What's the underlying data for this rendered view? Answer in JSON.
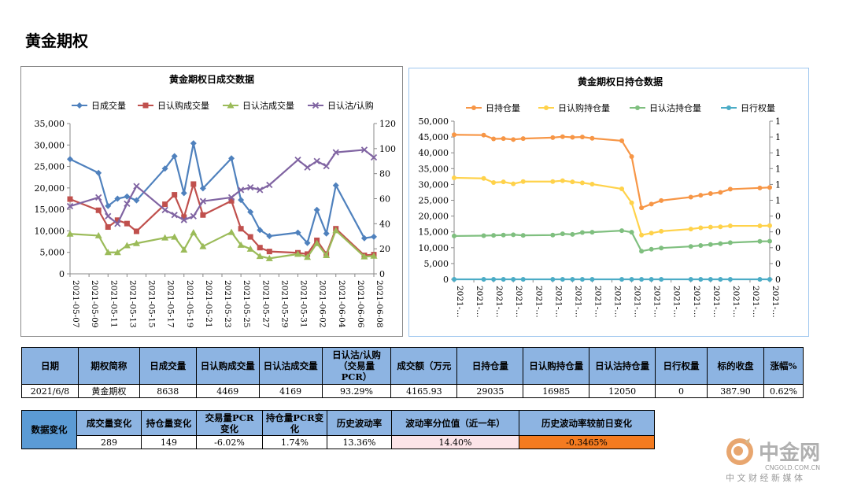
{
  "page": {
    "title": "黄金期权"
  },
  "chart_data": [
    {
      "type": "line",
      "title": "黄金期权日成交数据",
      "categories": [
        "2021-05-07",
        "2021-05-10",
        "2021-05-11",
        "2021-05-12",
        "2021-05-13",
        "2021-05-14",
        "2021-05-17",
        "2021-05-18",
        "2021-05-19",
        "2021-05-20",
        "2021-05-21",
        "2021-05-24",
        "2021-05-25",
        "2021-05-26",
        "2021-05-27",
        "2021-05-28",
        "2021-05-31",
        "2021-06-01",
        "2021-06-02",
        "2021-06-03",
        "2021-06-04",
        "2021-06-07",
        "2021-06-08"
      ],
      "x_tick_labels": [
        "2021-05-07",
        "2021-05-09",
        "2021-05-11",
        "2021-05-13",
        "2021-05-15",
        "2021-05-17",
        "2021-05-19",
        "2021-05-21",
        "2021-05-23",
        "2021-05-25",
        "2021-05-27",
        "2021-05-29",
        "2021-05-31",
        "2021-06-02",
        "2021-06-04",
        "2021-06-06",
        "2021-06-08"
      ],
      "x_range_days": [
        0,
        32
      ],
      "x_days": [
        0,
        3,
        4,
        5,
        6,
        7,
        10,
        11,
        12,
        13,
        14,
        17,
        18,
        19,
        20,
        21,
        24,
        25,
        26,
        27,
        28,
        31,
        32
      ],
      "left_axis": {
        "min": 0,
        "max": 35000,
        "step": 5000,
        "tick_labels": [
          "0",
          "5,000",
          "10,000",
          "15,000",
          "20,000",
          "25,000",
          "30,000",
          "35,000"
        ]
      },
      "right_axis": {
        "min": 0,
        "max": 120,
        "step": 20,
        "tick_labels": [
          "0",
          "20",
          "40",
          "60",
          "80",
          "100",
          "120"
        ]
      },
      "legend_position": "top",
      "series": [
        {
          "name": "日成交量",
          "axis": "left",
          "color": "#4f81bd",
          "marker": "diamond",
          "values": [
            26700,
            23500,
            15800,
            17500,
            18000,
            17100,
            24500,
            27400,
            18800,
            30400,
            19900,
            26900,
            17200,
            14400,
            10200,
            8800,
            9600,
            7200,
            14900,
            9400,
            20600,
            8300,
            8638
          ]
        },
        {
          "name": "日认购成交量",
          "axis": "left",
          "color": "#c0504d",
          "marker": "square",
          "values": [
            17400,
            14800,
            10900,
            12500,
            11700,
            9900,
            16200,
            18400,
            13200,
            20900,
            13700,
            17000,
            10500,
            8600,
            6100,
            5200,
            4900,
            4600,
            7800,
            4600,
            10500,
            4300,
            4469
          ]
        },
        {
          "name": "日认沽成交量",
          "axis": "left",
          "color": "#9bbb59",
          "marker": "triangle",
          "values": [
            9300,
            8900,
            5000,
            5000,
            6600,
            7100,
            8400,
            8600,
            5600,
            9600,
            6400,
            9700,
            6700,
            5800,
            4100,
            3600,
            4600,
            3900,
            7100,
            4300,
            10100,
            4000,
            4169
          ]
        },
        {
          "name": "日认沽/认购",
          "axis": "right",
          "color": "#8064a2",
          "marker": "x",
          "values": [
            54,
            61,
            46,
            40,
            56,
            70,
            51,
            47,
            43,
            46,
            58,
            61,
            67,
            69,
            67,
            71,
            91,
            85,
            90,
            86,
            97,
            99,
            93
          ]
        }
      ]
    },
    {
      "type": "line",
      "title": "黄金期权日持仓数据",
      "x_tick_labels": [
        "2021-…",
        "2021-…",
        "2021-…",
        "2021-…",
        "2021-…",
        "2021-…",
        "2021-…",
        "2021-…",
        "2021-…",
        "2021-…",
        "2021-…",
        "2021-…",
        "2021-…",
        "2021-…",
        "2021-…",
        "2021-…",
        "2021-…"
      ],
      "x_range_days": [
        0,
        32
      ],
      "x_days": [
        0,
        3,
        4,
        5,
        6,
        7,
        10,
        11,
        12,
        13,
        14,
        17,
        18,
        19,
        20,
        21,
        24,
        25,
        26,
        27,
        28,
        31,
        32
      ],
      "left_axis": {
        "min": 0,
        "max": 50000,
        "step": 5000,
        "tick_labels": [
          "0",
          "5,000",
          "10,000",
          "15,000",
          "20,000",
          "25,000",
          "30,000",
          "35,000",
          "40,000",
          "45,000",
          "50,000"
        ]
      },
      "right_axis": {
        "tick_labels": [
          "0",
          "0",
          "0",
          "0",
          "0",
          "1",
          "1",
          "1",
          "1",
          "1",
          "1"
        ]
      },
      "legend_position": "top",
      "series": [
        {
          "name": "日持仓量",
          "axis": "left",
          "color": "#f79646",
          "marker": "circle",
          "values": [
            45700,
            45600,
            44400,
            44500,
            44200,
            44500,
            44800,
            45100,
            44900,
            45000,
            44600,
            43800,
            38800,
            22600,
            23800,
            24900,
            26000,
            26600,
            27100,
            27500,
            28500,
            28900,
            29035
          ]
        },
        {
          "name": "日认购持仓量",
          "axis": "left",
          "color": "#ffd24a",
          "marker": "circle",
          "values": [
            32100,
            31900,
            30600,
            30800,
            30200,
            30900,
            30900,
            31200,
            30800,
            30500,
            30100,
            28600,
            24200,
            14000,
            14600,
            15200,
            15900,
            16300,
            16500,
            16600,
            16900,
            16900,
            16985
          ]
        },
        {
          "name": "日认沽持仓量",
          "axis": "left",
          "color": "#7fbf7f",
          "marker": "circle",
          "values": [
            13700,
            13800,
            13900,
            14000,
            14100,
            13900,
            14000,
            14400,
            14200,
            14800,
            14900,
            15400,
            14900,
            8900,
            9500,
            9900,
            10400,
            10700,
            11000,
            11300,
            11600,
            12000,
            12050
          ]
        },
        {
          "name": "日行权量",
          "axis": "right",
          "color": "#4bacc6",
          "marker": "circle",
          "values": [
            0,
            0,
            0,
            0,
            0,
            0,
            0,
            0,
            0,
            0,
            0,
            0,
            0,
            0,
            0,
            0,
            0,
            0,
            0,
            0,
            0,
            0,
            0
          ]
        }
      ]
    }
  ],
  "table1": {
    "headers": [
      "日期",
      "期权简称",
      "日成交量",
      "日认购成交量",
      "日认沽成交量",
      "日认沽/认购（交易量PCR）",
      "成交额（万元）",
      "日持仓量",
      "日认购持仓量",
      "日认沽持仓量",
      "日行权量",
      "标的收盘",
      "涨幅%"
    ],
    "header_lines": [
      [
        "日期"
      ],
      [
        "期权简称"
      ],
      [
        "日成交量"
      ],
      [
        "日认购成交量"
      ],
      [
        "日认沽成交量"
      ],
      [
        "日认沽/认购",
        "（交易量",
        "PCR）"
      ],
      [
        "成交额（万元"
      ],
      [
        "日持仓量"
      ],
      [
        "日认购持仓量"
      ],
      [
        "日认沽持仓量"
      ],
      [
        "日行权量"
      ],
      [
        "标的收盘"
      ],
      [
        "涨幅%"
      ]
    ],
    "row": [
      "2021/6/8",
      "黄金期权",
      "8638",
      "4469",
      "4169",
      "93.29%",
      "4165.93",
      "29035",
      "16985",
      "12050",
      "0",
      "387.90",
      "0.62%"
    ]
  },
  "table2": {
    "row_header": "数据变化",
    "header_lines": [
      [
        "成交量变化"
      ],
      [
        "持仓量变化"
      ],
      [
        "交易量PCR",
        "变化"
      ],
      [
        "持仓量PCR变",
        "化"
      ],
      [
        "历史波动率"
      ],
      [
        "波动率分位值（近一年）"
      ],
      [
        "历史波动率较前日变化"
      ]
    ],
    "row": [
      "289",
      "149",
      "-6.02%",
      "1.74%",
      "13.36%",
      "14.40%",
      "-0.3465%"
    ]
  },
  "logo": {
    "name": "中金网",
    "domain": "CNGOLD.COM.CN",
    "tagline": "中 文 财 经 新 媒 体"
  },
  "colors": {
    "header_bg": "#8db4e2",
    "row_header_bg": "#5b9bd5",
    "pink": "#fce4e8",
    "orange": "#f47b20"
  }
}
